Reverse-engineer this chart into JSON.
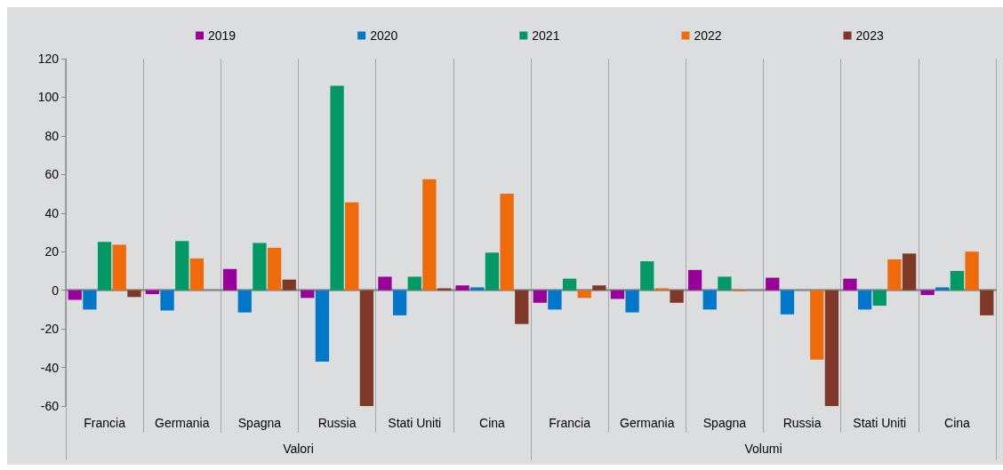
{
  "chart_data": {
    "type": "bar",
    "categories": [
      "Francia",
      "Germania",
      "Spagna",
      "Russia",
      "Stati Uniti",
      "Cina",
      "Francia",
      "Germania",
      "Spagna",
      "Russia",
      "Stati Uniti",
      "Cina"
    ],
    "annotations": [
      "Valori",
      "Volumi"
    ],
    "series": [
      {
        "name": "2019",
        "color": "#990099",
        "values": [
          -5,
          -2,
          11,
          -4,
          7,
          2.5,
          -6.5,
          -4.5,
          10.5,
          6.5,
          6,
          -2.5
        ]
      },
      {
        "name": "2020",
        "color": "#0077c8",
        "values": [
          -10,
          -10.5,
          -11.5,
          -37,
          -13,
          1.5,
          -10,
          -11.5,
          -10,
          -12.5,
          -10,
          1.5
        ]
      },
      {
        "name": "2021",
        "color": "#009966",
        "values": [
          25,
          25.5,
          24.5,
          106,
          7,
          19.5,
          6,
          15,
          7,
          null,
          -8,
          10
        ]
      },
      {
        "name": "2022",
        "color": "#ee6a0a",
        "values": [
          23.5,
          16.5,
          22,
          45.5,
          57.5,
          50,
          -4,
          1,
          -0.5,
          -36,
          16,
          20
        ]
      },
      {
        "name": "2023",
        "color": "#7f3728",
        "values": [
          -3.5,
          null,
          5.5,
          -60,
          1,
          -17.5,
          2.5,
          -6.5,
          null,
          -60,
          19,
          -13
        ]
      }
    ],
    "ylim": [
      -60,
      120
    ],
    "yticks": [
      -60,
      -40,
      -20,
      0,
      20,
      40,
      60,
      80,
      100,
      120
    ],
    "grid": "x",
    "legend": "top"
  }
}
